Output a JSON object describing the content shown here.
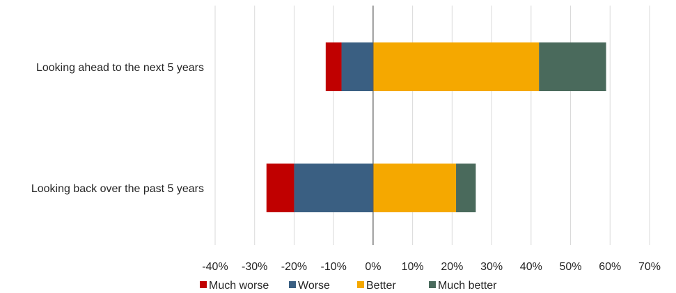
{
  "chart_data": {
    "type": "bar",
    "orientation": "horizontal",
    "stacked": "diverging",
    "categories": [
      "Looking ahead to the next 5 years",
      "Looking back over the past 5 years"
    ],
    "series": [
      {
        "name": "Much worse",
        "values": [
          -4,
          -7
        ],
        "color": "#c00000"
      },
      {
        "name": "Worse",
        "values": [
          -8,
          -20
        ],
        "color": "#3a5f82"
      },
      {
        "name": "Better",
        "values": [
          42,
          21
        ],
        "color": "#f5a800"
      },
      {
        "name": "Much better",
        "values": [
          17,
          5
        ],
        "color": "#4a6a5c"
      }
    ],
    "xlim": [
      -40,
      70
    ],
    "x_ticks": [
      "-40%",
      "-30%",
      "-20%",
      "-10%",
      "0%",
      "10%",
      "20%",
      "30%",
      "40%",
      "50%",
      "60%",
      "70%"
    ],
    "grid": true,
    "legend_position": "bottom"
  }
}
